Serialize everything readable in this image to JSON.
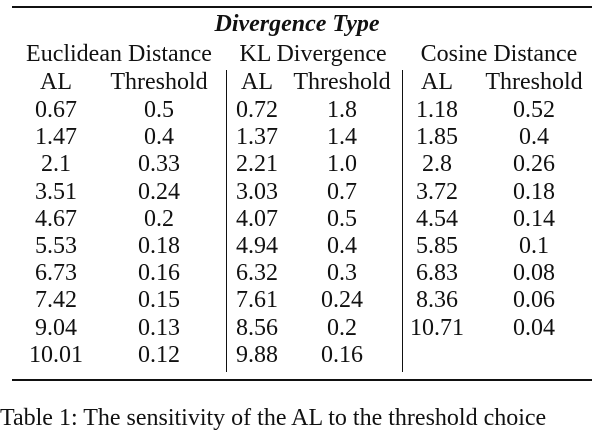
{
  "table": {
    "title": "Divergence Type",
    "groups": [
      "Euclidean Distance",
      "KL Divergence",
      "Cosine Distance"
    ],
    "columns": [
      "AL",
      "Threshold",
      "AL",
      "Threshold",
      "AL",
      "Threshold"
    ],
    "rows": [
      [
        "0.67",
        "0.5",
        "0.72",
        "1.8",
        "1.18",
        "0.52"
      ],
      [
        "1.47",
        "0.4",
        "1.37",
        "1.4",
        "1.85",
        "0.4"
      ],
      [
        "2.1",
        "0.33",
        "2.21",
        "1.0",
        "2.8",
        "0.26"
      ],
      [
        "3.51",
        "0.24",
        "3.03",
        "0.7",
        "3.72",
        "0.18"
      ],
      [
        "4.67",
        "0.2",
        "4.07",
        "0.5",
        "4.54",
        "0.14"
      ],
      [
        "5.53",
        "0.18",
        "4.94",
        "0.4",
        "5.85",
        "0.1"
      ],
      [
        "6.73",
        "0.16",
        "6.32",
        "0.3",
        "6.83",
        "0.08"
      ],
      [
        "7.42",
        "0.15",
        "7.61",
        "0.24",
        "8.36",
        "0.06"
      ],
      [
        "9.04",
        "0.13",
        "8.56",
        "0.2",
        "10.71",
        "0.04"
      ],
      [
        "10.01",
        "0.12",
        "9.88",
        "0.16",
        "",
        ""
      ]
    ]
  },
  "caption": "Table 1: The sensitivity of the AL to the threshold choice"
}
